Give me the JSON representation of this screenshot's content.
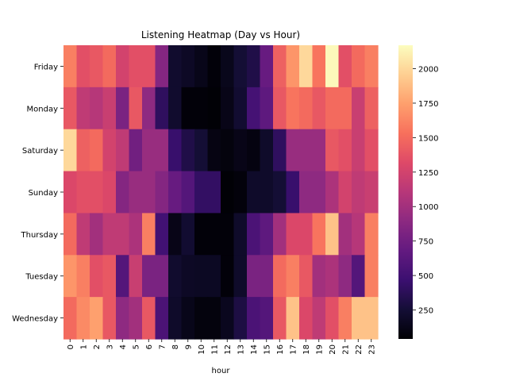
{
  "chart_data": {
    "type": "heatmap",
    "title": "Listening Heatmap (Day vs Hour)",
    "xlabel": "hour",
    "ylabel": "",
    "x_categories": [
      "0",
      "1",
      "2",
      "3",
      "4",
      "5",
      "6",
      "7",
      "8",
      "9",
      "10",
      "11",
      "12",
      "13",
      "14",
      "15",
      "16",
      "17",
      "18",
      "19",
      "20",
      "21",
      "22",
      "23"
    ],
    "y_categories": [
      "Friday",
      "Monday",
      "Saturday",
      "Sunday",
      "Thursday",
      "Tuesday",
      "Wednesday"
    ],
    "values": [
      [
        1600,
        1350,
        1400,
        1500,
        1250,
        1350,
        1350,
        850,
        220,
        180,
        130,
        60,
        140,
        250,
        320,
        700,
        1450,
        1700,
        2000,
        1550,
        2150,
        1350,
        1500,
        1600
      ],
      [
        1400,
        1150,
        1100,
        1200,
        800,
        1400,
        900,
        400,
        220,
        60,
        60,
        50,
        120,
        230,
        520,
        650,
        1400,
        1550,
        1500,
        1400,
        1500,
        1500,
        1200,
        1450
      ],
      [
        2000,
        1450,
        1500,
        1250,
        1150,
        750,
        950,
        950,
        450,
        320,
        250,
        100,
        80,
        120,
        90,
        200,
        400,
        950,
        950,
        950,
        1400,
        1350,
        1200,
        1350
      ],
      [
        1300,
        1350,
        1350,
        1300,
        850,
        950,
        950,
        850,
        700,
        600,
        420,
        420,
        50,
        70,
        200,
        200,
        250,
        450,
        900,
        900,
        1050,
        1250,
        1150,
        1200
      ],
      [
        1500,
        1150,
        1000,
        1150,
        1150,
        1050,
        1600,
        500,
        120,
        230,
        60,
        60,
        60,
        200,
        550,
        650,
        1000,
        1300,
        1300,
        1550,
        1900,
        1000,
        1100,
        1600
      ],
      [
        1700,
        1600,
        1350,
        1400,
        600,
        1200,
        800,
        800,
        220,
        180,
        170,
        170,
        60,
        200,
        800,
        800,
        1500,
        1600,
        1400,
        1000,
        1050,
        900,
        600,
        1600
      ],
      [
        1500,
        1650,
        1750,
        1400,
        900,
        1000,
        1400,
        550,
        200,
        130,
        80,
        80,
        150,
        300,
        550,
        600,
        1400,
        1900,
        1300,
        1150,
        1350,
        1600,
        1900,
        1900
      ]
    ],
    "colorbar": {
      "ticks": [
        250,
        500,
        750,
        1000,
        1250,
        1500,
        1750,
        2000
      ],
      "range": [
        40,
        2170
      ],
      "colormap": "magma"
    }
  }
}
